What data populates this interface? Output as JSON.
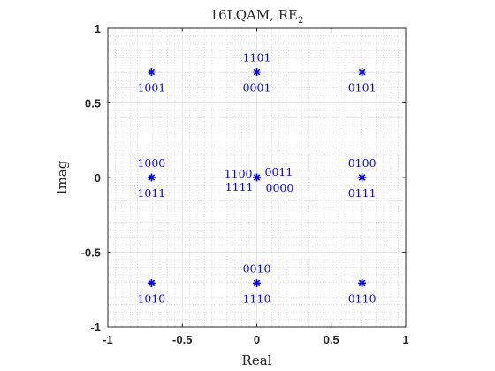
{
  "chart_data": {
    "type": "scatter",
    "title": "16LQAM, RE",
    "title_subscript": "2",
    "xlabel": "Real",
    "ylabel": "Imag",
    "xlim": [
      -1,
      1
    ],
    "ylim": [
      -1,
      1
    ],
    "x_ticks": [
      -1,
      -0.5,
      0,
      0.5,
      1
    ],
    "x_tick_labels": [
      "-1",
      "-0.5",
      "0",
      "0.5",
      "1"
    ],
    "y_ticks": [
      -1,
      -0.5,
      0,
      0.5,
      1
    ],
    "y_tick_labels": [
      "-1",
      "-0.5",
      "0",
      "0.5",
      "1"
    ],
    "grid": true,
    "minor_grid": true,
    "marker": "asterisk",
    "marker_color": "#0000ff",
    "points": [
      {
        "x": -0.707,
        "y": 0.707,
        "labels": [
          {
            "text": "1001",
            "pos": "below"
          }
        ]
      },
      {
        "x": 0,
        "y": 0.707,
        "labels": [
          {
            "text": "1101",
            "pos": "above"
          },
          {
            "text": "0001",
            "pos": "below"
          }
        ]
      },
      {
        "x": 0.707,
        "y": 0.707,
        "labels": [
          {
            "text": "0101",
            "pos": "below"
          }
        ]
      },
      {
        "x": -0.707,
        "y": 0,
        "labels": [
          {
            "text": "1000",
            "pos": "above"
          },
          {
            "text": "1011",
            "pos": "below"
          }
        ]
      },
      {
        "x": 0,
        "y": 0,
        "labels": [
          {
            "text": "1100",
            "pos": "upper-left"
          },
          {
            "text": "0011",
            "pos": "upper-right"
          },
          {
            "text": "1111",
            "pos": "lower-left"
          },
          {
            "text": "0000",
            "pos": "lower-right"
          }
        ]
      },
      {
        "x": 0.707,
        "y": 0,
        "labels": [
          {
            "text": "0100",
            "pos": "above"
          },
          {
            "text": "0111",
            "pos": "below"
          }
        ]
      },
      {
        "x": -0.707,
        "y": -0.707,
        "labels": [
          {
            "text": "1010",
            "pos": "below"
          }
        ]
      },
      {
        "x": 0,
        "y": -0.707,
        "labels": [
          {
            "text": "0010",
            "pos": "above"
          },
          {
            "text": "1110",
            "pos": "below"
          }
        ]
      },
      {
        "x": 0.707,
        "y": -0.707,
        "labels": [
          {
            "text": "0110",
            "pos": "below"
          }
        ]
      }
    ]
  }
}
